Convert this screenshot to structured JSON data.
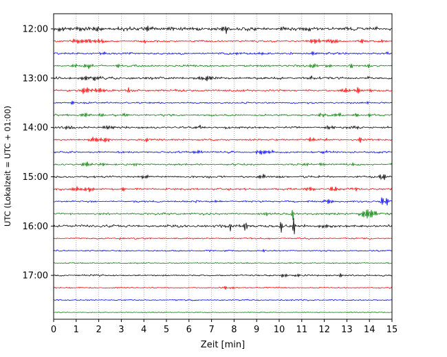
{
  "chart_data": {
    "type": "line",
    "subtype": "helicorder-seismogram",
    "title": "",
    "xlabel": "Zeit  [min]",
    "ylabel": "UTC (Lokalzeit = UTC + 01:00)",
    "xlim": [
      0,
      15
    ],
    "x_ticks": [
      0,
      1,
      2,
      3,
      4,
      5,
      6,
      7,
      8,
      9,
      10,
      11,
      12,
      13,
      14,
      15
    ],
    "y_ticks": [
      {
        "label": "12:00",
        "row": 0
      },
      {
        "label": "13:00",
        "row": 4
      },
      {
        "label": "14:00",
        "row": 8
      },
      {
        "label": "15:00",
        "row": 12
      },
      {
        "label": "16:00",
        "row": 16
      },
      {
        "label": "17:00",
        "row": 20
      }
    ],
    "grid": "vertical-dotted",
    "grid_color": "#999999",
    "minutes_per_row": 15,
    "trace_color_cycle": [
      "#000000",
      "#ff0000",
      "#0000ff",
      "#008000"
    ],
    "rows": [
      {
        "time": "12:00",
        "color": "#000000",
        "noise": 1.7,
        "events": [
          [
            0.3,
            3,
            0.15
          ],
          [
            1.2,
            2.5,
            0.2
          ],
          [
            2.0,
            2.5,
            0.3
          ],
          [
            3.0,
            2,
            0.2
          ],
          [
            4.2,
            4,
            0.15
          ],
          [
            5.2,
            2.5,
            0.2
          ],
          [
            6.1,
            2,
            0.15
          ],
          [
            7.6,
            6,
            0.12
          ],
          [
            9.0,
            3,
            0.15
          ],
          [
            10.2,
            2,
            0.2
          ],
          [
            11.3,
            2,
            0.2
          ],
          [
            13.0,
            2,
            0.2
          ],
          [
            14.2,
            2,
            0.15
          ]
        ]
      },
      {
        "time": "12:15",
        "color": "#ff0000",
        "noise": 0.9,
        "events": [
          [
            1.0,
            3,
            0.2
          ],
          [
            1.5,
            4,
            0.25
          ],
          [
            2.1,
            3,
            0.2
          ],
          [
            4.0,
            2,
            0.15
          ],
          [
            11.6,
            3,
            0.3
          ],
          [
            12.4,
            3,
            0.25
          ],
          [
            13.7,
            5,
            0.08
          ],
          [
            14.6,
            2,
            0.1
          ]
        ]
      },
      {
        "time": "12:30",
        "color": "#0000ff",
        "noise": 1.0,
        "events": [
          [
            2.2,
            2,
            0.2
          ],
          [
            9.2,
            3,
            0.1
          ],
          [
            11.5,
            2.5,
            0.15
          ],
          [
            14.8,
            2,
            0.1
          ]
        ]
      },
      {
        "time": "12:45",
        "color": "#008000",
        "noise": 0.9,
        "events": [
          [
            0.9,
            2.5,
            0.15
          ],
          [
            1.5,
            3,
            0.2
          ],
          [
            2.9,
            2.5,
            0.12
          ],
          [
            11.5,
            3,
            0.2
          ],
          [
            12.2,
            2,
            0.15
          ],
          [
            13.2,
            3.5,
            0.12
          ],
          [
            14.0,
            3,
            0.1
          ]
        ]
      },
      {
        "time": "13:00",
        "color": "#000000",
        "noise": 1.2,
        "events": [
          [
            1.4,
            3,
            0.25
          ],
          [
            1.9,
            3,
            0.2
          ],
          [
            6.6,
            2.5,
            0.3
          ],
          [
            7.0,
            2,
            0.2
          ],
          [
            11.4,
            2,
            0.2
          ],
          [
            13.9,
            3,
            0.1
          ]
        ]
      },
      {
        "time": "13:15",
        "color": "#ff0000",
        "noise": 1.0,
        "events": [
          [
            1.4,
            4,
            0.25
          ],
          [
            2.0,
            4,
            0.2
          ],
          [
            3.3,
            4,
            0.08
          ],
          [
            12.9,
            3,
            0.2
          ],
          [
            13.5,
            3.5,
            0.15
          ],
          [
            14.0,
            2.5,
            0.1
          ]
        ]
      },
      {
        "time": "13:30",
        "color": "#0000ff",
        "noise": 0.8,
        "events": [
          [
            0.85,
            5,
            0.06
          ],
          [
            13.9,
            2,
            0.1
          ]
        ]
      },
      {
        "time": "13:45",
        "color": "#008000",
        "noise": 1.0,
        "events": [
          [
            1.4,
            3,
            0.2
          ],
          [
            2.1,
            2.5,
            0.15
          ],
          [
            3.2,
            3.5,
            0.1
          ],
          [
            11.9,
            2.5,
            0.2
          ],
          [
            12.6,
            3,
            0.15
          ],
          [
            13.4,
            3.5,
            0.12
          ],
          [
            14.0,
            2.5,
            0.1
          ]
        ]
      },
      {
        "time": "14:00",
        "color": "#000000",
        "noise": 1.1,
        "events": [
          [
            0.6,
            2,
            0.2
          ],
          [
            2.4,
            2.5,
            0.25
          ],
          [
            6.4,
            2,
            0.3
          ],
          [
            12.2,
            2.5,
            0.2
          ],
          [
            13.4,
            3,
            0.15
          ]
        ]
      },
      {
        "time": "14:15",
        "color": "#ff0000",
        "noise": 0.9,
        "events": [
          [
            1.8,
            3.5,
            0.25
          ],
          [
            2.3,
            3,
            0.2
          ],
          [
            4.1,
            4,
            0.07
          ],
          [
            11.4,
            2.5,
            0.2
          ],
          [
            12.1,
            2,
            0.15
          ],
          [
            13.6,
            6,
            0.07
          ]
        ]
      },
      {
        "time": "14:30",
        "color": "#0000ff",
        "noise": 0.9,
        "events": [
          [
            6.3,
            2,
            0.3
          ],
          [
            9.2,
            3,
            0.25
          ],
          [
            9.7,
            2,
            0.2
          ],
          [
            12.0,
            1.5,
            0.2
          ]
        ]
      },
      {
        "time": "14:45",
        "color": "#008000",
        "noise": 0.9,
        "events": [
          [
            1.4,
            3,
            0.2
          ],
          [
            2.2,
            2.5,
            0.15
          ],
          [
            3.6,
            4,
            0.07
          ],
          [
            11.2,
            2.5,
            0.15
          ],
          [
            11.9,
            2.5,
            0.15
          ],
          [
            13.3,
            2,
            0.1
          ]
        ]
      },
      {
        "time": "15:00",
        "color": "#000000",
        "noise": 1.1,
        "events": [
          [
            4.0,
            2,
            0.3
          ],
          [
            9.3,
            2,
            0.25
          ],
          [
            14.6,
            4,
            0.2
          ]
        ]
      },
      {
        "time": "15:15",
        "color": "#ff0000",
        "noise": 1.0,
        "events": [
          [
            1.0,
            3,
            0.2
          ],
          [
            1.6,
            3.5,
            0.25
          ],
          [
            3.1,
            4,
            0.08
          ],
          [
            11.4,
            3,
            0.2
          ],
          [
            12.4,
            3,
            0.2
          ],
          [
            13.4,
            2.5,
            0.15
          ]
        ]
      },
      {
        "time": "15:30",
        "color": "#0000ff",
        "noise": 0.9,
        "events": [
          [
            7.2,
            2,
            0.2
          ],
          [
            12.2,
            3,
            0.2
          ],
          [
            14.55,
            6,
            0.08
          ],
          [
            14.8,
            7,
            0.08
          ]
        ]
      },
      {
        "time": "15:45",
        "color": "#008000",
        "noise": 1.1,
        "events": [
          [
            9.4,
            6,
            0.06
          ],
          [
            10.6,
            8,
            0.05
          ],
          [
            13.8,
            6,
            0.2
          ],
          [
            14.05,
            5,
            0.15
          ],
          [
            14.3,
            3,
            0.1
          ]
        ]
      },
      {
        "time": "16:00",
        "color": "#000000",
        "noise": 1.3,
        "events": [
          [
            7.8,
            9,
            0.07
          ],
          [
            8.5,
            10,
            0.07
          ],
          [
            10.1,
            8,
            0.08
          ],
          [
            10.65,
            12,
            0.06
          ],
          [
            12.0,
            2,
            0.2
          ]
        ]
      },
      {
        "time": "16:15",
        "color": "#ff0000",
        "noise": 0.7,
        "events": [
          [
            3.0,
            1,
            0.2
          ]
        ]
      },
      {
        "time": "16:30",
        "color": "#0000ff",
        "noise": 0.7,
        "events": [
          [
            9.3,
            1.5,
            0.1
          ]
        ]
      },
      {
        "time": "16:45",
        "color": "#008000",
        "noise": 0.55,
        "events": []
      },
      {
        "time": "17:00",
        "color": "#000000",
        "noise": 0.8,
        "events": [
          [
            10.2,
            3,
            0.15
          ],
          [
            10.8,
            3,
            0.12
          ],
          [
            12.7,
            4,
            0.07
          ]
        ]
      },
      {
        "time": "17:15",
        "color": "#ff0000",
        "noise": 0.6,
        "events": [
          [
            7.6,
            2.5,
            0.12
          ],
          [
            7.9,
            2,
            0.1
          ]
        ]
      },
      {
        "time": "17:30",
        "color": "#0000ff",
        "noise": 0.6,
        "events": []
      },
      {
        "time": "17:45",
        "color": "#008000",
        "noise": 0.45,
        "events": []
      }
    ]
  }
}
